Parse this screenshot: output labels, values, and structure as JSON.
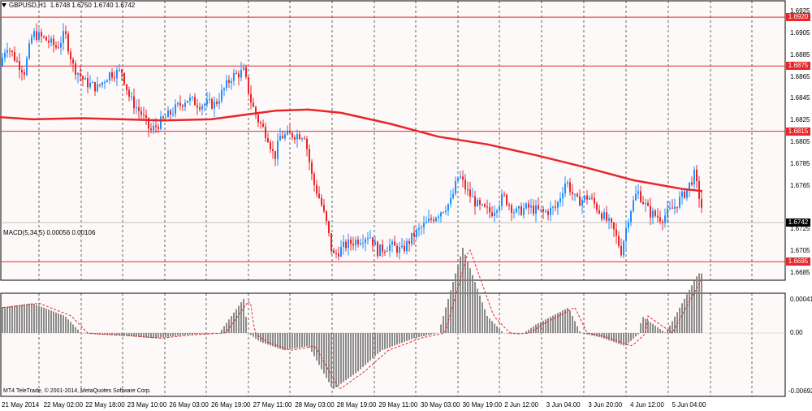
{
  "header": {
    "symbol": "GBPUSD,H1",
    "ohlc": "1.6748 1.6750 1.6740 1.6742"
  },
  "price_axis": {
    "ticks": [
      "1.6925",
      "1.6905",
      "1.6885",
      "1.6865",
      "1.6845",
      "1.6825",
      "1.6805",
      "1.6785",
      "1.6765",
      "1.6725",
      "1.6705",
      "1.6685"
    ]
  },
  "horizontal_lines": [
    {
      "label": "1.6920",
      "color": "#e8262a"
    },
    {
      "label": "1.6875",
      "color": "#e8262a"
    },
    {
      "label": "1.6815",
      "color": "#e8262a"
    },
    {
      "label": "1.6695",
      "color": "#e8262a"
    }
  ],
  "current_price": {
    "label": "1.6742"
  },
  "indicator": {
    "macd_label": "MACD(5,34,5) 0.00056 0.00106",
    "ticks": [
      "0.00041",
      "0.00",
      "-0.00692"
    ]
  },
  "time_axis": {
    "labels": [
      "21 May 2014",
      "22 May 02:00",
      "22 May 18:00",
      "23 May 10:00",
      "26 May 03:00",
      "26 May 19:00",
      "27 May 11:00",
      "28 May 03:00",
      "28 May 19:00",
      "29 May 11:00",
      "30 May 03:00",
      "30 May 19:00",
      "2 Jun 12:00",
      "3 Jun 04:00",
      "3 Jun 20:00",
      "4 Jun 12:00",
      "5 Jun 04:00"
    ]
  },
  "footer": "MT4 TeleTrade, © 2001-2014, MetaQuotes Software Corp.",
  "colors": {
    "bull": "#1e90ff",
    "bear": "#e8262a",
    "ma": "#e8262a",
    "grid": "#000000",
    "hist": "#808080",
    "signal": "#e8262a"
  },
  "chart_data": {
    "type": "candlestick",
    "symbol": "GBPUSD",
    "timeframe": "H1",
    "ylim": [
      1.6678,
      1.6935
    ],
    "close_path": [
      [
        0,
        1.6875
      ],
      [
        8,
        1.6895
      ],
      [
        20,
        1.688
      ],
      [
        30,
        1.687
      ],
      [
        40,
        1.6905
      ],
      [
        55,
        1.69
      ],
      [
        70,
        1.6892
      ],
      [
        80,
        1.6905
      ],
      [
        90,
        1.6875
      ],
      [
        105,
        1.686
      ],
      [
        120,
        1.6855
      ],
      [
        135,
        1.6868
      ],
      [
        150,
        1.687
      ],
      [
        160,
        1.6845
      ],
      [
        175,
        1.683
      ],
      [
        185,
        1.6815
      ],
      [
        200,
        1.6825
      ],
      [
        215,
        1.6835
      ],
      [
        230,
        1.6845
      ],
      [
        245,
        1.684
      ],
      [
        265,
        1.684
      ],
      [
        285,
        1.6865
      ],
      [
        300,
        1.687
      ],
      [
        310,
        1.684
      ],
      [
        318,
        1.6825
      ],
      [
        330,
        1.681
      ],
      [
        338,
        1.679
      ],
      [
        345,
        1.681
      ],
      [
        360,
        1.6812
      ],
      [
        375,
        1.6812
      ],
      [
        385,
        1.677
      ],
      [
        395,
        1.675
      ],
      [
        402,
        1.673
      ],
      [
        410,
        1.67
      ],
      [
        425,
        1.671
      ],
      [
        440,
        1.6715
      ],
      [
        455,
        1.672
      ],
      [
        465,
        1.6705
      ],
      [
        480,
        1.671
      ],
      [
        495,
        1.6705
      ],
      [
        510,
        1.672
      ],
      [
        525,
        1.673
      ],
      [
        540,
        1.674
      ],
      [
        555,
        1.675
      ],
      [
        565,
        1.6775
      ],
      [
        575,
        1.676
      ],
      [
        590,
        1.6745
      ],
      [
        605,
        1.674
      ],
      [
        620,
        1.6755
      ],
      [
        635,
        1.674
      ],
      [
        650,
        1.6745
      ],
      [
        670,
        1.674
      ],
      [
        685,
        1.6745
      ],
      [
        697,
        1.677
      ],
      [
        710,
        1.675
      ],
      [
        725,
        1.6755
      ],
      [
        740,
        1.674
      ],
      [
        755,
        1.6725
      ],
      [
        765,
        1.6705
      ],
      [
        775,
        1.674
      ],
      [
        785,
        1.676
      ],
      [
        800,
        1.674
      ],
      [
        815,
        1.6735
      ],
      [
        830,
        1.6745
      ],
      [
        845,
        1.676
      ],
      [
        855,
        1.6775
      ],
      [
        865,
        1.6742
      ]
    ],
    "ma_path": [
      [
        0,
        1.6828
      ],
      [
        40,
        1.6826
      ],
      [
        100,
        1.6827
      ],
      [
        150,
        1.6826
      ],
      [
        200,
        1.6825
      ],
      [
        260,
        1.6826
      ],
      [
        300,
        1.683
      ],
      [
        340,
        1.6834
      ],
      [
        380,
        1.6835
      ],
      [
        420,
        1.6832
      ],
      [
        480,
        1.6822
      ],
      [
        540,
        1.681
      ],
      [
        600,
        1.6803
      ],
      [
        660,
        1.6793
      ],
      [
        720,
        1.6782
      ],
      [
        780,
        1.677
      ],
      [
        840,
        1.6762
      ],
      [
        865,
        1.676
      ]
    ],
    "macd_path": [
      [
        0,
        0.0003
      ],
      [
        40,
        0.00035
      ],
      [
        80,
        0.0002
      ],
      [
        110,
        -0.0001
      ],
      [
        150,
        -0.0003
      ],
      [
        190,
        -0.0006
      ],
      [
        230,
        -0.0002
      ],
      [
        270,
        0.0
      ],
      [
        300,
        0.0004
      ],
      [
        320,
        -0.001
      ],
      [
        350,
        -0.002
      ],
      [
        380,
        -0.0015
      ],
      [
        410,
        -0.0065
      ],
      [
        440,
        -0.0045
      ],
      [
        470,
        -0.002
      ],
      [
        510,
        -0.0006
      ],
      [
        540,
        0.0
      ],
      [
        570,
        0.001
      ],
      [
        600,
        0.0002
      ],
      [
        630,
        -0.0001
      ],
      [
        660,
        0.0001
      ],
      [
        700,
        0.0003
      ],
      [
        740,
        -0.0005
      ],
      [
        770,
        -0.0015
      ],
      [
        790,
        0.0002
      ],
      [
        820,
        0.0
      ],
      [
        860,
        0.0007
      ]
    ]
  }
}
